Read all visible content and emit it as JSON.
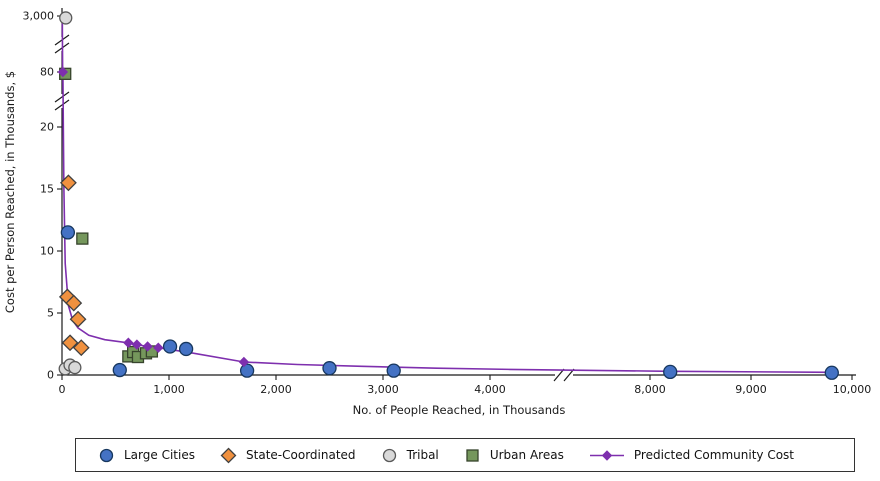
{
  "chart_data": {
    "type": "scatter",
    "xlabel": "No. of People Reached, in Thousands",
    "ylabel": "Cost per Person Reached, in Thousands, $",
    "x_axis": {
      "ticks": [
        0,
        1000,
        2000,
        3000,
        4000,
        8000,
        9000,
        10000
      ],
      "tick_labels": [
        "0",
        "1,000",
        "2,000",
        "3,000",
        "4,000",
        "8,000",
        "9,000",
        "10,000"
      ],
      "break_between": [
        4000,
        8000
      ]
    },
    "y_axis": {
      "ticks": [
        0,
        5,
        10,
        15,
        20,
        80,
        3000
      ],
      "tick_labels": [
        "0",
        "5",
        "10",
        "15",
        "20",
        "80",
        "3,000"
      ],
      "breaks": [
        [
          20,
          80
        ],
        [
          80,
          3000
        ]
      ]
    },
    "series": [
      {
        "name": "Large Cities",
        "marker": "circle",
        "size": 6.5,
        "fill": "#4472C4",
        "stroke": "#17375E",
        "points": [
          [
            55,
            11.5
          ],
          [
            540,
            0.4
          ],
          [
            1010,
            2.3
          ],
          [
            1160,
            2.1
          ],
          [
            1730,
            0.35
          ],
          [
            2500,
            0.55
          ],
          [
            3100,
            0.35
          ],
          [
            8200,
            0.25
          ],
          [
            9800,
            0.18
          ]
        ]
      },
      {
        "name": "State-Coordinated",
        "marker": "diamond",
        "size": 7.5,
        "fill": "#F0913F",
        "stroke": "#404040",
        "points": [
          [
            60,
            15.5
          ],
          [
            50,
            6.3
          ],
          [
            110,
            5.8
          ],
          [
            150,
            4.5
          ],
          [
            75,
            2.6
          ],
          [
            180,
            2.2
          ]
        ]
      },
      {
        "name": "Tribal",
        "marker": "circle",
        "size": 6,
        "fill": "#D9D9D9",
        "stroke": "#595959",
        "points": [
          [
            35,
            2900
          ],
          [
            30,
            0.5
          ],
          [
            75,
            0.8
          ],
          [
            120,
            0.6
          ]
        ]
      },
      {
        "name": "Urban Areas",
        "marker": "square",
        "size": 5.5,
        "fill": "#75975C",
        "stroke": "#37442C",
        "points": [
          [
            30,
            78
          ],
          [
            190,
            11
          ],
          [
            620,
            1.5
          ],
          [
            665,
            1.85
          ],
          [
            710,
            1.45
          ],
          [
            785,
            1.75
          ],
          [
            840,
            1.9
          ]
        ]
      },
      {
        "name": "Predicted Community Cost",
        "marker": "line-diamond",
        "size": 4.5,
        "fill": "#7E2FAE",
        "stroke": "#7E2FAE",
        "line": true,
        "points": [
          [
            3,
            2900
          ],
          [
            6,
            400
          ],
          [
            8,
            80
          ],
          [
            12,
            24
          ],
          [
            18,
            15
          ],
          [
            30,
            9
          ],
          [
            60,
            5.6
          ],
          [
            100,
            4.4
          ],
          [
            150,
            3.8
          ],
          [
            250,
            3.2
          ],
          [
            400,
            2.85
          ],
          [
            620,
            2.6
          ],
          [
            700,
            2.45
          ],
          [
            800,
            2.3
          ],
          [
            900,
            2.2
          ],
          [
            1200,
            1.8
          ],
          [
            1700,
            1.05
          ],
          [
            2200,
            0.85
          ],
          [
            2800,
            0.7
          ],
          [
            3500,
            0.55
          ],
          [
            4500,
            0.45
          ],
          [
            8200,
            0.3
          ],
          [
            9800,
            0.22
          ]
        ],
        "marker_points": [
          [
            8,
            80
          ],
          [
            620,
            2.6
          ],
          [
            700,
            2.45
          ],
          [
            800,
            2.3
          ],
          [
            900,
            2.2
          ],
          [
            1700,
            1.05
          ]
        ]
      }
    ]
  }
}
